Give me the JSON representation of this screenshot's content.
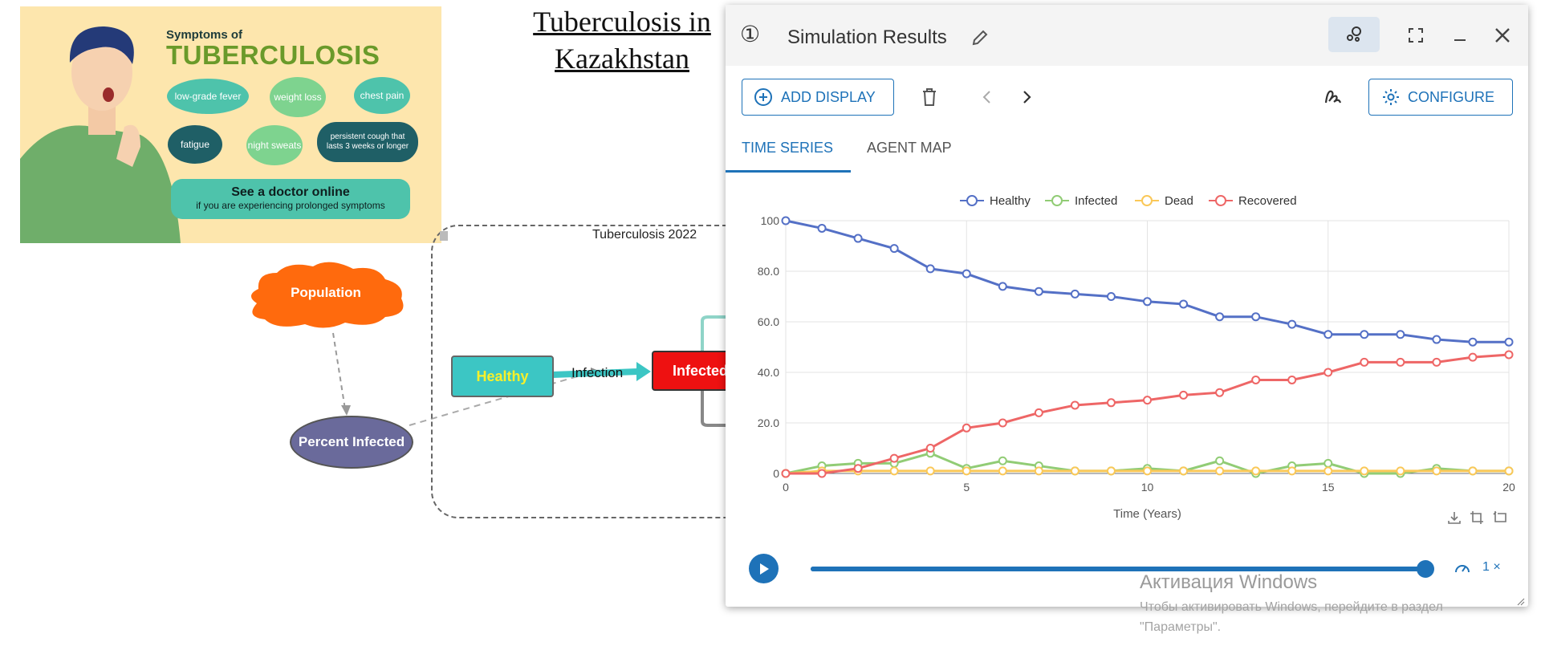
{
  "infographic": {
    "title_small": "Symptoms of",
    "title_big": "TUBERCULOSIS",
    "symptoms": [
      "low-grade fever",
      "weight loss",
      "chest pain",
      "fatigue",
      "night sweats",
      "persistent cough that lasts 3 weeks or longer"
    ],
    "cta_title": "See a doctor online",
    "cta_sub": "if you are experiencing prolonged symptoms"
  },
  "canvas": {
    "title": "Tuberculosis in Kazakhstan",
    "group_label": "Tuberculosis 2022",
    "nodes": {
      "population": "Population",
      "percent_infected": "Percent Infected",
      "healthy": "Healthy",
      "infected": "Infected"
    },
    "edge_label": "Infection"
  },
  "panel": {
    "number": "①",
    "title": "Simulation Results",
    "add_display": "ADD DISPLAY",
    "configure": "CONFIGURE",
    "tabs": [
      "TIME SERIES",
      "AGENT MAP"
    ],
    "active_tab": "TIME SERIES",
    "speed": "1 ×",
    "progress": 1.0,
    "accent": "#1e72b8"
  },
  "chart_data": {
    "type": "line",
    "xlabel": "Time (Years)",
    "ylabel": "",
    "xlim": [
      0,
      20
    ],
    "ylim": [
      0,
      100
    ],
    "x_ticks": [
      "0",
      "5",
      "10",
      "15",
      "20"
    ],
    "y_ticks": [
      "0",
      "20.0",
      "40.0",
      "60.0",
      "80.0",
      "100"
    ],
    "legend_position": "top",
    "grid": true,
    "x": [
      0,
      1,
      2,
      3,
      4,
      5,
      6,
      7,
      8,
      9,
      10,
      11,
      12,
      13,
      14,
      15,
      16,
      17,
      18,
      19,
      20
    ],
    "series": [
      {
        "name": "Healthy",
        "color": "#5470c6",
        "values": [
          100,
          97,
          93,
          89,
          81,
          79,
          74,
          72,
          71,
          70,
          68,
          67,
          62,
          62,
          59,
          55,
          55,
          55,
          53,
          52,
          52
        ]
      },
      {
        "name": "Infected",
        "color": "#91cc75",
        "values": [
          0,
          3,
          4,
          4,
          8,
          2,
          5,
          3,
          1,
          1,
          2,
          1,
          5,
          0,
          3,
          4,
          0,
          0,
          2,
          1,
          1
        ]
      },
      {
        "name": "Dead",
        "color": "#fac858",
        "values": [
          0,
          1,
          1,
          1,
          1,
          1,
          1,
          1,
          1,
          1,
          1,
          1,
          1,
          1,
          1,
          1,
          1,
          1,
          1,
          1,
          1
        ]
      },
      {
        "name": "Recovered",
        "color": "#ee6666",
        "values": [
          0,
          0,
          2,
          6,
          10,
          18,
          20,
          24,
          27,
          28,
          29,
          31,
          32,
          37,
          37,
          40,
          44,
          44,
          44,
          46,
          47
        ]
      }
    ]
  },
  "watermark": {
    "title": "Активация Windows",
    "text": "Чтобы активировать Windows, перейдите в раздел \"Параметры\"."
  }
}
